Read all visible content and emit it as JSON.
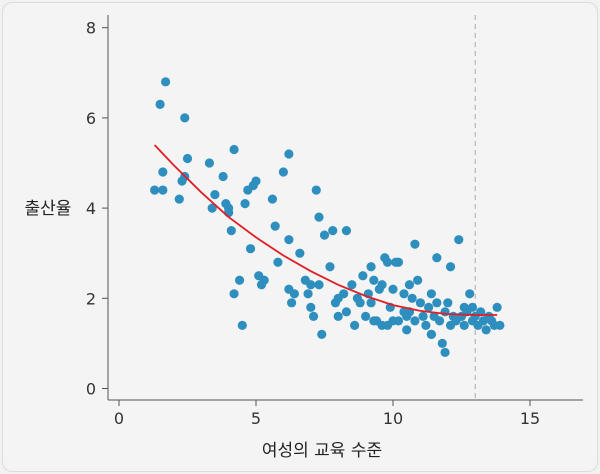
{
  "chart_data": {
    "type": "scatter",
    "xlabel": "여성의 교육 수준",
    "ylabel": "출산율",
    "xlim": [
      -1,
      17
    ],
    "ylim": [
      -0.25,
      8.3
    ],
    "x_ticks": [
      "0",
      "5",
      "10",
      "15"
    ],
    "y_ticks": [
      "0",
      "2",
      "4",
      "6",
      "8"
    ],
    "grid": false,
    "colors": {
      "points": "#2e8fbf",
      "fit_line": "#e01e25",
      "reference_line": "#aaaaaa",
      "axes": "#555555"
    },
    "reference_line_x": 13,
    "fit_curve": {
      "x": [
        1.3,
        2,
        3,
        4,
        5,
        6,
        7,
        8,
        9,
        10,
        11,
        12,
        13,
        13.8
      ],
      "y": [
        5.4,
        4.95,
        4.35,
        3.8,
        3.35,
        2.95,
        2.6,
        2.3,
        2.05,
        1.85,
        1.72,
        1.65,
        1.63,
        1.63
      ]
    },
    "points": [
      [
        1.3,
        4.4
      ],
      [
        1.6,
        4.4
      ],
      [
        1.6,
        4.8
      ],
      [
        1.5,
        6.3
      ],
      [
        1.7,
        6.8
      ],
      [
        2.2,
        4.2
      ],
      [
        2.3,
        4.6
      ],
      [
        2.4,
        4.7
      ],
      [
        2.4,
        6.0
      ],
      [
        2.5,
        5.1
      ],
      [
        3.3,
        5.0
      ],
      [
        3.5,
        4.3
      ],
      [
        3.4,
        4.0
      ],
      [
        3.8,
        4.7
      ],
      [
        3.9,
        4.1
      ],
      [
        4.0,
        4.0
      ],
      [
        4.0,
        3.9
      ],
      [
        4.1,
        3.5
      ],
      [
        4.2,
        5.3
      ],
      [
        4.2,
        2.1
      ],
      [
        4.4,
        2.4
      ],
      [
        4.5,
        1.4
      ],
      [
        4.6,
        4.1
      ],
      [
        4.7,
        4.4
      ],
      [
        4.8,
        3.1
      ],
      [
        4.9,
        4.5
      ],
      [
        5.0,
        4.6
      ],
      [
        5.1,
        2.5
      ],
      [
        5.2,
        2.3
      ],
      [
        5.3,
        2.4
      ],
      [
        5.6,
        4.2
      ],
      [
        5.8,
        2.8
      ],
      [
        6.0,
        4.8
      ],
      [
        6.2,
        5.2
      ],
      [
        6.2,
        3.3
      ],
      [
        6.2,
        2.2
      ],
      [
        6.3,
        1.9
      ],
      [
        6.4,
        2.1
      ],
      [
        6.6,
        3.0
      ],
      [
        6.8,
        2.4
      ],
      [
        6.9,
        2.1
      ],
      [
        7.0,
        1.8
      ],
      [
        7.1,
        1.6
      ],
      [
        7.2,
        4.4
      ],
      [
        7.3,
        3.8
      ],
      [
        7.3,
        2.3
      ],
      [
        7.4,
        1.2
      ],
      [
        7.5,
        3.4
      ],
      [
        7.7,
        2.7
      ],
      [
        7.8,
        3.5
      ],
      [
        7.9,
        1.9
      ],
      [
        8.0,
        2.0
      ],
      [
        8.2,
        2.1
      ],
      [
        8.3,
        3.5
      ],
      [
        8.3,
        1.7
      ],
      [
        8.5,
        2.3
      ],
      [
        8.6,
        1.4
      ],
      [
        8.7,
        2.0
      ],
      [
        8.8,
        1.9
      ],
      [
        8.9,
        2.5
      ],
      [
        9.0,
        1.6
      ],
      [
        9.1,
        2.1
      ],
      [
        9.2,
        2.7
      ],
      [
        9.2,
        1.9
      ],
      [
        9.3,
        2.4
      ],
      [
        9.4,
        1.5
      ],
      [
        9.5,
        2.2
      ],
      [
        9.6,
        2.3
      ],
      [
        9.6,
        1.4
      ],
      [
        9.7,
        2.9
      ],
      [
        9.8,
        2.8
      ],
      [
        9.8,
        1.4
      ],
      [
        9.9,
        1.8
      ],
      [
        10.0,
        1.5
      ],
      [
        10.0,
        2.2
      ],
      [
        10.1,
        2.8
      ],
      [
        10.2,
        2.8
      ],
      [
        10.2,
        1.5
      ],
      [
        10.4,
        2.1
      ],
      [
        10.4,
        1.7
      ],
      [
        10.5,
        1.3
      ],
      [
        10.5,
        1.6
      ],
      [
        10.6,
        2.3
      ],
      [
        10.6,
        1.7
      ],
      [
        10.7,
        2.0
      ],
      [
        10.8,
        3.2
      ],
      [
        10.8,
        1.5
      ],
      [
        10.9,
        2.4
      ],
      [
        11.0,
        1.9
      ],
      [
        11.1,
        1.6
      ],
      [
        11.2,
        1.4
      ],
      [
        11.3,
        1.8
      ],
      [
        11.4,
        2.1
      ],
      [
        11.4,
        1.2
      ],
      [
        11.5,
        1.6
      ],
      [
        11.6,
        2.9
      ],
      [
        11.6,
        1.9
      ],
      [
        11.7,
        1.5
      ],
      [
        11.8,
        1.0
      ],
      [
        11.9,
        1.7
      ],
      [
        12.0,
        1.9
      ],
      [
        12.1,
        1.4
      ],
      [
        12.1,
        2.7
      ],
      [
        12.2,
        1.6
      ],
      [
        12.3,
        1.5
      ],
      [
        12.4,
        3.3
      ],
      [
        12.5,
        1.6
      ],
      [
        12.6,
        1.8
      ],
      [
        12.7,
        1.7
      ],
      [
        12.8,
        2.1
      ],
      [
        12.9,
        1.5
      ],
      [
        13.0,
        1.6
      ],
      [
        13.1,
        1.4
      ],
      [
        13.2,
        1.7
      ],
      [
        13.3,
        1.5
      ],
      [
        13.4,
        1.3
      ],
      [
        13.5,
        1.6
      ],
      [
        13.6,
        1.5
      ],
      [
        13.7,
        1.4
      ],
      [
        13.8,
        1.8
      ],
      [
        13.9,
        1.4
      ],
      [
        12.6,
        1.4
      ],
      [
        12.9,
        1.8
      ],
      [
        11.9,
        0.8
      ],
      [
        11.4,
        1.2
      ],
      [
        10.6,
        1.7
      ],
      [
        9.3,
        1.5
      ],
      [
        8.0,
        1.6
      ],
      [
        7.0,
        2.3
      ],
      [
        5.7,
        3.6
      ]
    ]
  }
}
